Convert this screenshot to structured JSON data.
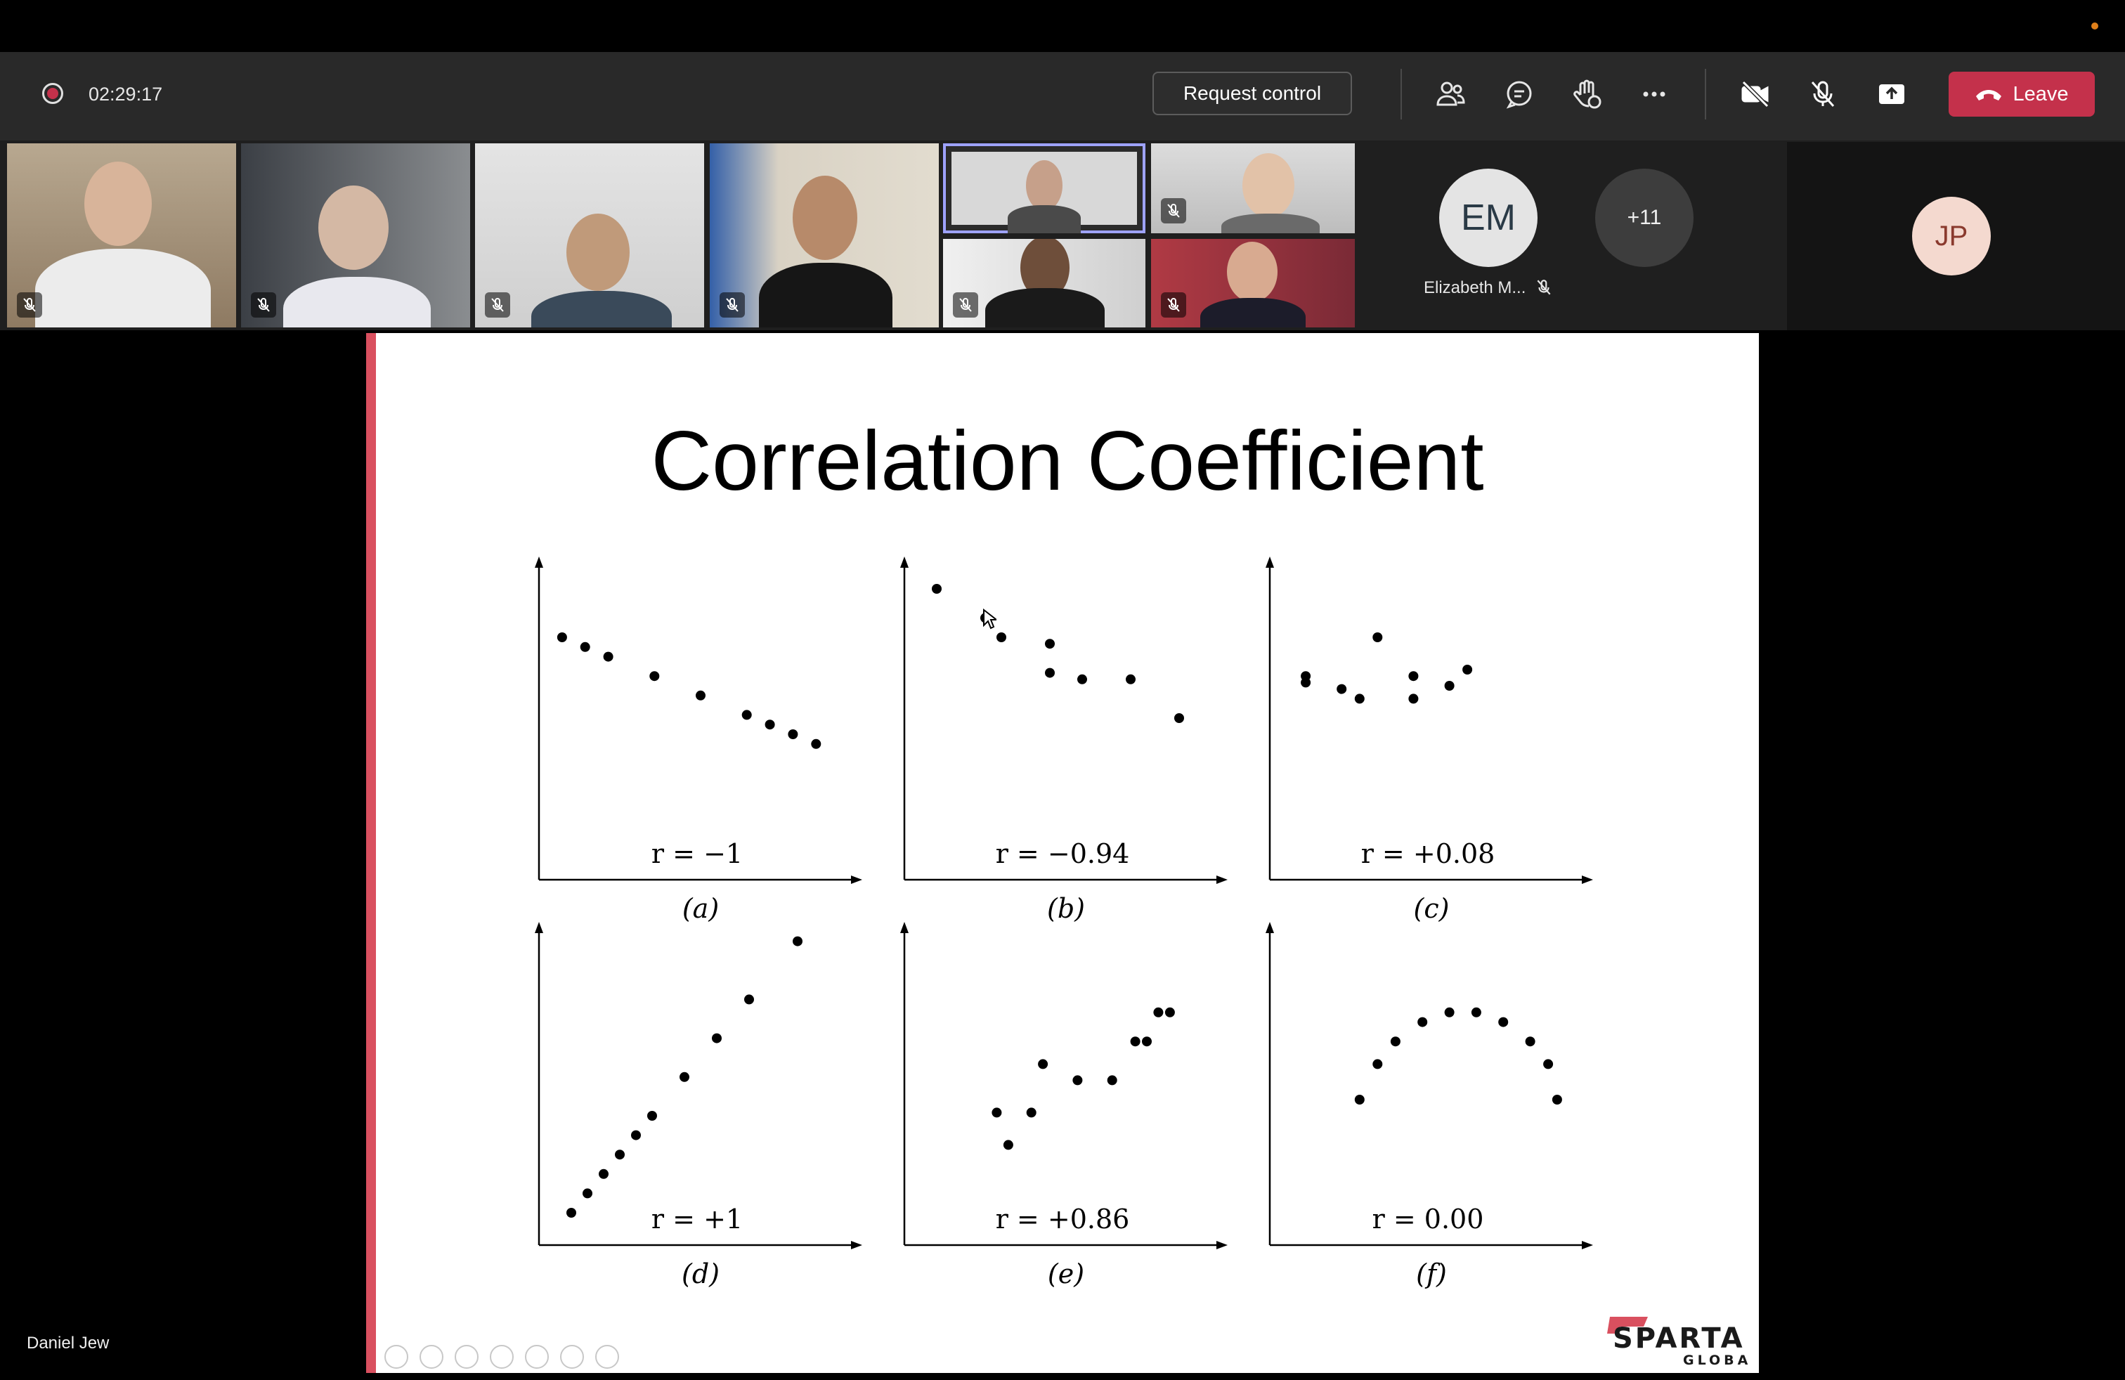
{
  "meeting": {
    "timer": "02:29:17",
    "request_control_label": "Request control",
    "leave_label": "Leave"
  },
  "colors": {
    "toolbar_bg": "#292929",
    "leave_red": "#c4314b",
    "slide_accent": "#d9505f",
    "active_speaker_outline": "#9ea2ff"
  },
  "toolbar_icons": [
    "people-icon",
    "chat-icon",
    "raise-hand-icon",
    "more-options-icon",
    "camera-off-icon",
    "mic-off-icon",
    "share-screen-icon"
  ],
  "participants": {
    "overflow_label": "+11",
    "em": {
      "initials": "EM",
      "name": "Elizabeth M..."
    },
    "jp": {
      "initials": "JP"
    },
    "presenter_name": "Daniel Jew"
  },
  "slide": {
    "title": "Correlation Coefficient",
    "logo_text": "SPARTA",
    "logo_subtext": "GLOBAL"
  },
  "chart_data": [
    {
      "type": "scatter",
      "caption": "(a)",
      "r_label": "r = −1",
      "x": [
        1,
        2,
        3,
        5,
        7,
        9,
        10,
        11,
        12
      ],
      "y": [
        7.5,
        7.2,
        6.9,
        6.3,
        5.7,
        5.1,
        4.8,
        4.5,
        4.2
      ]
    },
    {
      "type": "scatter",
      "caption": "(b)",
      "r_label": "r = −0.94",
      "x": [
        1,
        2.5,
        3,
        4.5,
        4.5,
        5.5,
        7,
        8.5
      ],
      "y": [
        9,
        8.1,
        7.5,
        7.3,
        6.4,
        6.2,
        6.2,
        5
      ]
    },
    {
      "type": "scatter",
      "caption": "(c)",
      "r_label": "r = +0.08",
      "x": [
        1,
        1,
        2,
        2.5,
        3,
        4,
        4,
        5,
        5.5
      ],
      "y": [
        6.3,
        6.1,
        5.9,
        5.6,
        7.5,
        6.3,
        5.6,
        6,
        6.5
      ]
    },
    {
      "type": "scatter",
      "caption": "(d)",
      "r_label": "r = +1",
      "x": [
        1,
        1.5,
        2,
        2.5,
        3,
        3.5,
        4.5,
        5.5,
        6.5,
        8
      ],
      "y": [
        1,
        1.6,
        2.2,
        2.8,
        3.4,
        4,
        5.2,
        6.4,
        7.6,
        9.4
      ]
    },
    {
      "type": "scatter",
      "caption": "(e)",
      "r_label": "r = +0.86",
      "x": [
        4,
        4.5,
        5.5,
        6,
        7.5,
        9,
        10,
        10.5,
        11,
        11.5
      ],
      "y": [
        4.1,
        3.1,
        4.1,
        5.6,
        5.1,
        5.1,
        6.3,
        6.3,
        7.2,
        7.2
      ]
    },
    {
      "type": "scatter",
      "caption": "(f)",
      "r_label": "r = 0.00",
      "x": [
        5,
        6,
        7,
        8.5,
        10,
        11.5,
        13,
        14.5,
        15.5,
        16
      ],
      "y": [
        4.5,
        5.6,
        6.3,
        6.9,
        7.2,
        7.2,
        6.9,
        6.3,
        5.6,
        4.5
      ]
    }
  ]
}
